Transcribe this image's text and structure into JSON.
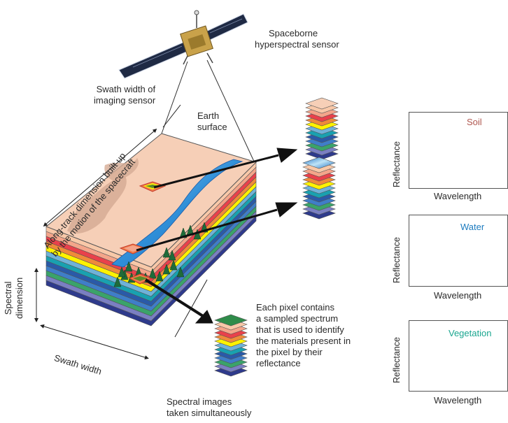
{
  "labels": {
    "sensor": [
      "Spaceborne",
      "hyperspectral sensor"
    ],
    "swath_imaging": [
      "Swath width of",
      "imaging sensor"
    ],
    "earth_surface": [
      "Earth",
      "surface"
    ],
    "along_track": [
      "Along-track dimension built up",
      "by the motion of the spacecraft"
    ],
    "spectral_dimension": [
      "Spectral",
      "dimension"
    ],
    "swath_width": "Swath width",
    "spectral_images": [
      "Spectral  images",
      "taken simultaneously"
    ],
    "pixel_note": [
      "Each pixel contains",
      "a sampled spectrum",
      "that is used to identify",
      "the materials present in",
      "the pixel by their",
      "reflectance"
    ]
  },
  "plots": [
    {
      "title": "Soil",
      "title_color": "#b0574f",
      "ylabel": "Reflectance",
      "xlabel": "Wavelength",
      "line_color": "#c8123e"
    },
    {
      "title": "Water",
      "title_color": "#1c7bbf",
      "ylabel": "Reflectance",
      "xlabel": "Wavelength",
      "line_color": "#c8123e"
    },
    {
      "title": "Vegetation",
      "title_color": "#1aa68f",
      "ylabel": "Reflectance",
      "xlabel": "Wavelength",
      "line_color": "#c8123e"
    }
  ],
  "layer_colors": [
    "#2e3a8c",
    "#7a7fc2",
    "#3aa36a",
    "#3f7ec8",
    "#2a5aa8",
    "#19a1b0",
    "#6fb2d8",
    "#fff200",
    "#f08a3a",
    "#e9414b",
    "#f4a58a",
    "#f8c8a8"
  ]
}
